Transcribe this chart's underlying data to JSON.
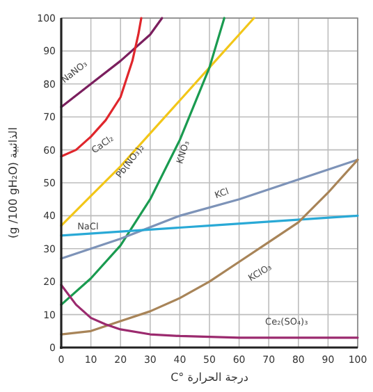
{
  "chart_data": {
    "type": "line",
    "xlabel": "درجة الحرارة °C",
    "ylabel": "الذائبية (g /100 gH₂O)",
    "xlim": [
      0,
      100
    ],
    "ylim": [
      0,
      100
    ],
    "xticks": [
      0,
      10,
      20,
      30,
      40,
      50,
      60,
      70,
      80,
      90,
      100
    ],
    "yticks": [
      0,
      10,
      20,
      30,
      40,
      50,
      60,
      70,
      80,
      90,
      100
    ],
    "grid": true,
    "series": [
      {
        "name": "NaNO₃",
        "color": "#7b1f5e",
        "x": [
          0,
          10,
          20,
          30,
          34
        ],
        "values": [
          73,
          80,
          87,
          95,
          100
        ]
      },
      {
        "name": "CaCl₂",
        "color": "#e0262c",
        "x": [
          0,
          5,
          10,
          15,
          20,
          24,
          26,
          27
        ],
        "values": [
          58,
          60,
          64,
          69,
          76,
          87,
          95,
          100
        ]
      },
      {
        "name": "Pb(NO₃)₂",
        "color": "#f2c618",
        "x": [
          0,
          10,
          20,
          30,
          40,
          50,
          60,
          65
        ],
        "values": [
          37,
          46,
          55,
          65,
          75,
          85,
          95,
          100
        ]
      },
      {
        "name": "KNO₃",
        "color": "#1a9b50",
        "x": [
          0,
          10,
          20,
          30,
          40,
          50,
          55
        ],
        "values": [
          13,
          21,
          31,
          45,
          63,
          85,
          100
        ]
      },
      {
        "name": "KCl",
        "color": "#7d93b8",
        "x": [
          0,
          20,
          40,
          60,
          80,
          100
        ],
        "values": [
          27,
          33,
          40,
          45,
          51,
          57
        ]
      },
      {
        "name": "NaCl",
        "color": "#29a9d6",
        "x": [
          0,
          50,
          100
        ],
        "values": [
          34,
          37,
          40
        ]
      },
      {
        "name": "KClO₃",
        "color": "#a88458",
        "x": [
          0,
          10,
          20,
          30,
          40,
          50,
          60,
          70,
          80,
          90,
          100
        ],
        "values": [
          4,
          5,
          8,
          11,
          15,
          20,
          26,
          32,
          38,
          47,
          57
        ]
      },
      {
        "name": "Ce₂(SO₄)₃",
        "color": "#9b2a6e",
        "x": [
          0,
          5,
          10,
          15,
          20,
          30,
          40,
          60,
          100
        ],
        "values": [
          19,
          13,
          9,
          7,
          5.5,
          4,
          3.5,
          3,
          3
        ]
      }
    ]
  }
}
